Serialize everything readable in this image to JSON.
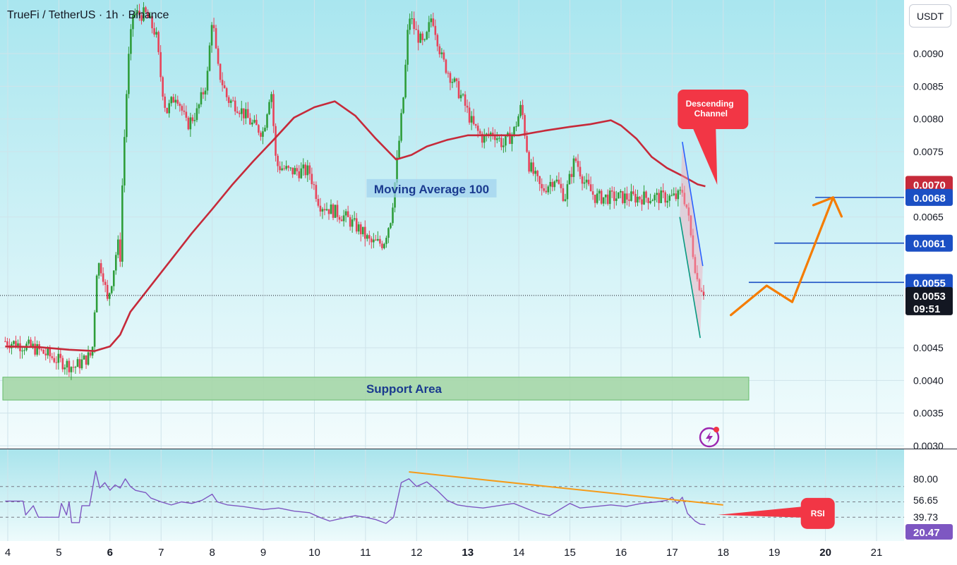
{
  "header": {
    "symbol_title": "TrueFi / TetherUS · 1h · Binance"
  },
  "axis": {
    "currency": "USDT"
  },
  "colors": {
    "up": "#26a69a",
    "candle_up": "#2e9d3a",
    "candle_down": "#e8435a",
    "ma_line": "#c62a3a",
    "level_line": "#1b4fc4",
    "projection": "#f57c00",
    "rsi_line": "#7e57c2",
    "rsi_trend": "#f59b1a",
    "support_fill": "#a5d6a7",
    "callout": "#f23645"
  },
  "chart_data": [
    {
      "type": "candlestick",
      "title": "TrueFi / TetherUS · 1h · Binance",
      "currency": "USDT",
      "ylim": [
        0.003,
        0.0096
      ],
      "xlim": [
        3.95,
        21.6
      ],
      "x_ticks": [
        {
          "label": "4",
          "x": 4,
          "bold": false
        },
        {
          "label": "5",
          "x": 5,
          "bold": false
        },
        {
          "label": "6",
          "x": 6,
          "bold": true
        },
        {
          "label": "7",
          "x": 7,
          "bold": false
        },
        {
          "label": "8",
          "x": 8,
          "bold": false
        },
        {
          "label": "9",
          "x": 9,
          "bold": false
        },
        {
          "label": "10",
          "x": 10,
          "bold": false
        },
        {
          "label": "11",
          "x": 11,
          "bold": false
        },
        {
          "label": "12",
          "x": 12,
          "bold": false
        },
        {
          "label": "13",
          "x": 13,
          "bold": true
        },
        {
          "label": "14",
          "x": 14,
          "bold": false
        },
        {
          "label": "15",
          "x": 15,
          "bold": false
        },
        {
          "label": "16",
          "x": 16,
          "bold": false
        },
        {
          "label": "17",
          "x": 17,
          "bold": false
        },
        {
          "label": "18",
          "x": 18,
          "bold": false
        },
        {
          "label": "19",
          "x": 19,
          "bold": false
        },
        {
          "label": "20",
          "x": 20,
          "bold": true
        },
        {
          "label": "21",
          "x": 21,
          "bold": false
        }
      ],
      "y_ticks": [
        {
          "label": "0.0090",
          "value": 0.009
        },
        {
          "label": "0.0085",
          "value": 0.0085
        },
        {
          "label": "0.0080",
          "value": 0.008
        },
        {
          "label": "0.0075",
          "value": 0.0075
        },
        {
          "label": "0.0065",
          "value": 0.0065
        },
        {
          "label": "0.0045",
          "value": 0.0045
        },
        {
          "label": "0.0040",
          "value": 0.004
        },
        {
          "label": "0.0035",
          "value": 0.0035
        },
        {
          "label": "0.0030",
          "value": 0.003
        }
      ],
      "price_path": [
        [
          3.95,
          0.0046
        ],
        [
          4.5,
          0.0045
        ],
        [
          5.0,
          0.0043
        ],
        [
          5.3,
          0.0042
        ],
        [
          5.65,
          0.0044
        ],
        [
          5.75,
          0.0058
        ],
        [
          5.85,
          0.0057
        ],
        [
          5.95,
          0.0052
        ],
        [
          6.05,
          0.0056
        ],
        [
          6.15,
          0.0061
        ],
        [
          6.2,
          0.0059
        ],
        [
          6.25,
          0.0072
        ],
        [
          6.35,
          0.0088
        ],
        [
          6.45,
          0.0096
        ],
        [
          6.7,
          0.0096
        ],
        [
          6.9,
          0.0093
        ],
        [
          7.0,
          0.0086
        ],
        [
          7.1,
          0.0081
        ],
        [
          7.3,
          0.0084
        ],
        [
          7.5,
          0.0079
        ],
        [
          7.7,
          0.0081
        ],
        [
          7.9,
          0.0086
        ],
        [
          8.0,
          0.0096
        ],
        [
          8.1,
          0.0088
        ],
        [
          8.3,
          0.0083
        ],
        [
          8.5,
          0.0082
        ],
        [
          8.8,
          0.0079
        ],
        [
          9.0,
          0.0078
        ],
        [
          9.15,
          0.0085
        ],
        [
          9.25,
          0.0073
        ],
        [
          9.5,
          0.0072
        ],
        [
          9.9,
          0.0072
        ],
        [
          10.1,
          0.0067
        ],
        [
          10.35,
          0.0066
        ],
        [
          10.6,
          0.0065
        ],
        [
          10.9,
          0.0063
        ],
        [
          11.1,
          0.0061
        ],
        [
          11.35,
          0.0061
        ],
        [
          11.5,
          0.0065
        ],
        [
          11.6,
          0.0072
        ],
        [
          11.75,
          0.0084
        ],
        [
          11.85,
          0.0096
        ],
        [
          12.0,
          0.0093
        ],
        [
          12.15,
          0.0091
        ],
        [
          12.3,
          0.0096
        ],
        [
          12.5,
          0.0089
        ],
        [
          12.7,
          0.0086
        ],
        [
          12.9,
          0.0083
        ],
        [
          13.1,
          0.0079
        ],
        [
          13.3,
          0.0077
        ],
        [
          13.5,
          0.0078
        ],
        [
          13.7,
          0.0076
        ],
        [
          13.9,
          0.0078
        ],
        [
          14.05,
          0.0082
        ],
        [
          14.2,
          0.0073
        ],
        [
          14.45,
          0.0069
        ],
        [
          14.7,
          0.0071
        ],
        [
          14.9,
          0.0068
        ],
        [
          15.1,
          0.0074
        ],
        [
          15.3,
          0.007
        ],
        [
          15.5,
          0.0068
        ],
        [
          15.9,
          0.0068
        ],
        [
          16.3,
          0.0068
        ],
        [
          16.7,
          0.0068
        ],
        [
          17.1,
          0.0068
        ],
        [
          17.2,
          0.0069
        ],
        [
          17.3,
          0.0066
        ],
        [
          17.4,
          0.006
        ],
        [
          17.5,
          0.0055
        ],
        [
          17.6,
          0.0054
        ],
        [
          17.65,
          0.0053
        ]
      ],
      "series": [
        {
          "name": "Moving Average 100",
          "type": "line",
          "points": [
            [
              3.95,
              0.00452
            ],
            [
              4.6,
              0.00451
            ],
            [
              5.2,
              0.00447
            ],
            [
              5.7,
              0.00445
            ],
            [
              6.0,
              0.00452
            ],
            [
              6.2,
              0.0047
            ],
            [
              6.4,
              0.00505
            ],
            [
              6.8,
              0.00545
            ],
            [
              7.2,
              0.00585
            ],
            [
              7.6,
              0.00625
            ],
            [
              8.0,
              0.00662
            ],
            [
              8.4,
              0.007
            ],
            [
              8.8,
              0.00735
            ],
            [
              9.2,
              0.00768
            ],
            [
              9.6,
              0.00802
            ],
            [
              10.0,
              0.00818
            ],
            [
              10.4,
              0.00827
            ],
            [
              10.8,
              0.00805
            ],
            [
              11.2,
              0.0077
            ],
            [
              11.6,
              0.00738
            ],
            [
              11.9,
              0.00745
            ],
            [
              12.2,
              0.00758
            ],
            [
              12.6,
              0.00768
            ],
            [
              13.0,
              0.00775
            ],
            [
              13.5,
              0.00775
            ],
            [
              14.0,
              0.00775
            ],
            [
              14.5,
              0.00782
            ],
            [
              15.0,
              0.00788
            ],
            [
              15.4,
              0.00792
            ],
            [
              15.8,
              0.00798
            ],
            [
              16.0,
              0.0079
            ],
            [
              16.3,
              0.0077
            ],
            [
              16.6,
              0.00742
            ],
            [
              16.9,
              0.00725
            ],
            [
              17.2,
              0.00713
            ],
            [
              17.5,
              0.007
            ],
            [
              17.65,
              0.00697
            ]
          ]
        }
      ],
      "annotations": [
        {
          "text": "Moving Average 100",
          "x": 11.05,
          "y": 0.00694
        },
        {
          "text": "Support Area",
          "zone": [
            0.0037,
            0.00405
          ],
          "x_start": 3.95,
          "x_end": 18.5
        },
        {
          "text": "Descending Channel",
          "x": 17.8,
          "y": 0.008
        }
      ],
      "horizontal_levels": [
        {
          "value": 0.0068,
          "x_start": 19.8,
          "label": "0.0068"
        },
        {
          "value": 0.0061,
          "x_start": 19.0,
          "label": "0.0061"
        },
        {
          "value": 0.0055,
          "x_start": 18.5,
          "label": "0.0055"
        }
      ],
      "price_labels": [
        {
          "text": "0.0070",
          "value": 0.007,
          "color": "#c62a3a"
        },
        {
          "text": "0.0068",
          "value": 0.0068,
          "color": "#1b4fc4"
        },
        {
          "text": "0.0061",
          "value": 0.0061,
          "color": "#1b4fc4"
        },
        {
          "text": "0.0055",
          "value": 0.0055,
          "color": "#1b4fc4"
        }
      ],
      "last_price": {
        "text": "0.0053",
        "countdown": "09:51",
        "value": 0.0053
      },
      "projection_path": [
        [
          18.15,
          0.005
        ],
        [
          18.85,
          0.00545
        ],
        [
          19.35,
          0.0052
        ],
        [
          20.15,
          0.0068
        ]
      ],
      "channel_lines": {
        "upper": [
          [
            17.2,
            0.00765
          ],
          [
            17.6,
            0.00575
          ]
        ],
        "lower": [
          [
            17.15,
            0.0065
          ],
          [
            17.55,
            0.00465
          ]
        ]
      }
    },
    {
      "type": "line",
      "title": "",
      "ylim": [
        0,
        100
      ],
      "y_ticks": [
        {
          "label": "80.00",
          "value": 80
        }
      ],
      "levels": [
        70,
        50,
        30
      ],
      "values_labels": [
        {
          "text": "56.65",
          "value": 56.65
        },
        {
          "text": "39.73",
          "value": 39.73
        },
        {
          "text": "20.47",
          "value": 20.47
        }
      ],
      "series": [
        {
          "name": "RSI",
          "points": [
            [
              3.95,
              51
            ],
            [
              4.3,
              51
            ],
            [
              4.35,
              33
            ],
            [
              4.5,
              45
            ],
            [
              4.6,
              30
            ],
            [
              5.0,
              30
            ],
            [
              5.05,
              48
            ],
            [
              5.15,
              33
            ],
            [
              5.2,
              50
            ],
            [
              5.25,
              23
            ],
            [
              5.4,
              23
            ],
            [
              5.45,
              45
            ],
            [
              5.6,
              45
            ],
            [
              5.72,
              90
            ],
            [
              5.8,
              68
            ],
            [
              5.9,
              75
            ],
            [
              6.0,
              65
            ],
            [
              6.1,
              72
            ],
            [
              6.2,
              68
            ],
            [
              6.3,
              80
            ],
            [
              6.4,
              70
            ],
            [
              6.5,
              65
            ],
            [
              6.7,
              62
            ],
            [
              6.8,
              55
            ],
            [
              7.0,
              50
            ],
            [
              7.2,
              46
            ],
            [
              7.4,
              50
            ],
            [
              7.6,
              48
            ],
            [
              7.8,
              52
            ],
            [
              8.0,
              60
            ],
            [
              8.1,
              50
            ],
            [
              8.3,
              46
            ],
            [
              8.6,
              44
            ],
            [
              9.0,
              40
            ],
            [
              9.3,
              42
            ],
            [
              9.6,
              38
            ],
            [
              9.9,
              36
            ],
            [
              10.1,
              30
            ],
            [
              10.3,
              25
            ],
            [
              10.5,
              28
            ],
            [
              10.8,
              32
            ],
            [
              11.0,
              30
            ],
            [
              11.2,
              27
            ],
            [
              11.4,
              22
            ],
            [
              11.55,
              30
            ],
            [
              11.7,
              75
            ],
            [
              11.85,
              80
            ],
            [
              12.0,
              70
            ],
            [
              12.2,
              76
            ],
            [
              12.4,
              65
            ],
            [
              12.6,
              52
            ],
            [
              12.8,
              46
            ],
            [
              13.0,
              44
            ],
            [
              13.3,
              42
            ],
            [
              13.6,
              45
            ],
            [
              13.9,
              48
            ],
            [
              14.2,
              40
            ],
            [
              14.4,
              35
            ],
            [
              14.6,
              32
            ],
            [
              14.8,
              40
            ],
            [
              15.0,
              48
            ],
            [
              15.2,
              42
            ],
            [
              15.5,
              44
            ],
            [
              15.8,
              46
            ],
            [
              16.1,
              44
            ],
            [
              16.4,
              48
            ],
            [
              16.7,
              50
            ],
            [
              16.9,
              52
            ],
            [
              17.0,
              56
            ],
            [
              17.1,
              48
            ],
            [
              17.2,
              56
            ],
            [
              17.3,
              35
            ],
            [
              17.45,
              25
            ],
            [
              17.55,
              21
            ],
            [
              17.65,
              20.5
            ]
          ]
        }
      ],
      "trend_line": [
        [
          11.85,
          89
        ],
        [
          18.0,
          46
        ]
      ],
      "callout": {
        "text": "RSI",
        "x": 19.85,
        "y": 35
      }
    }
  ]
}
